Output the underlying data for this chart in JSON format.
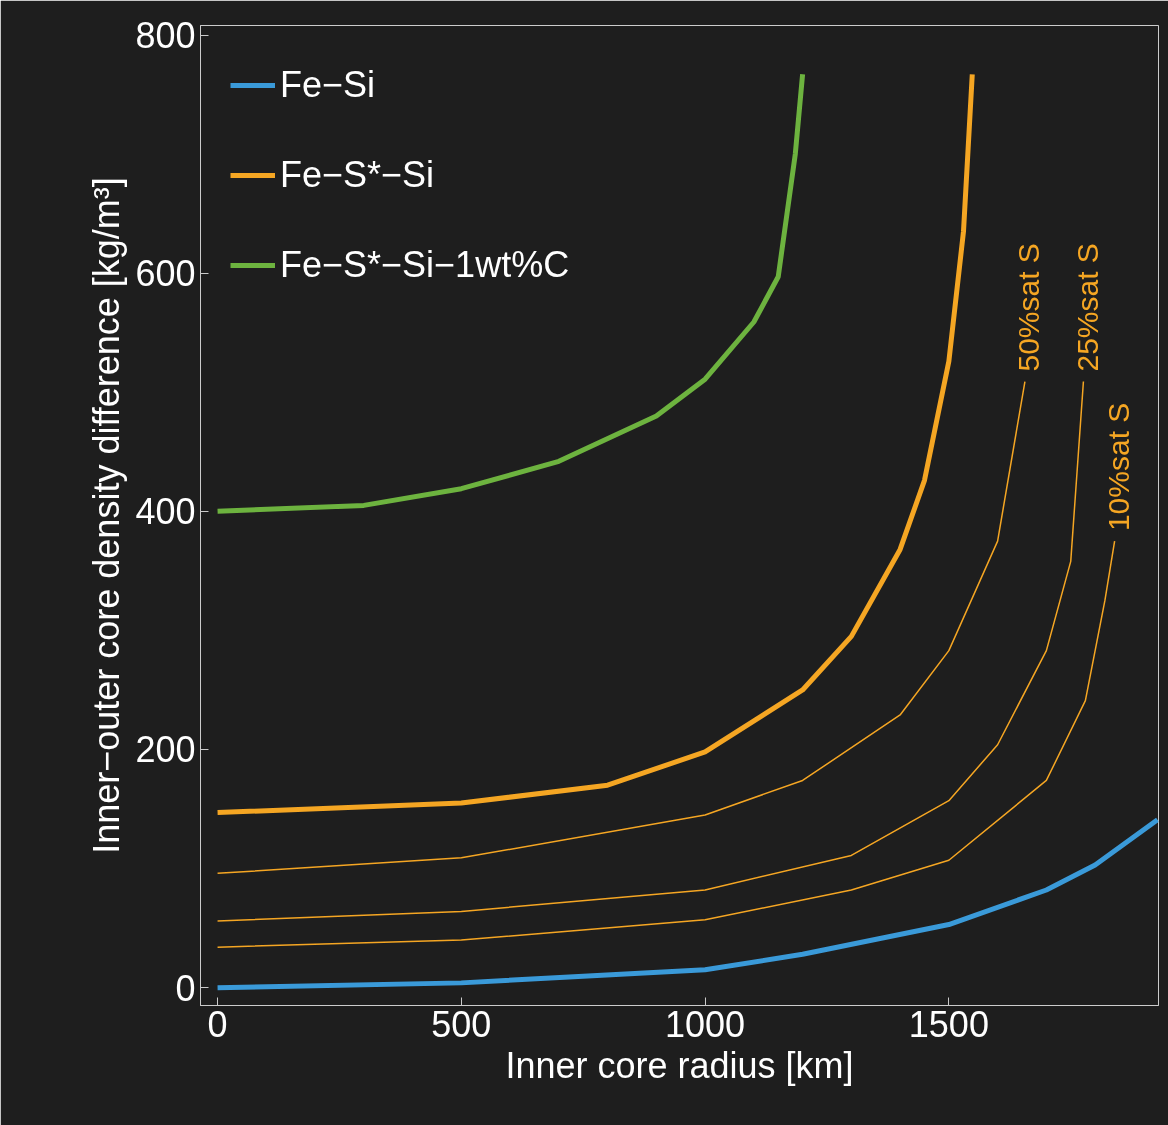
{
  "chart_data": {
    "type": "line",
    "xlabel": "Inner core radius [km]",
    "ylabel": "Inner−outer core density difference [kg/m³]",
    "xlim": [
      -35,
      1930
    ],
    "ylim": [
      -15,
      808
    ],
    "xticks": [
      0,
      500,
      1000,
      1500
    ],
    "yticks": [
      0,
      200,
      400,
      600,
      800
    ],
    "grid": false,
    "legend": "top left",
    "line_style": "solid",
    "marker": "none",
    "series": [
      {
        "name": "Fe−Si",
        "color": "#3a9ad9",
        "x": [
          0,
          500,
          1000,
          1200,
          1500,
          1700,
          1800,
          1928
        ],
        "values": [
          0,
          4,
          15,
          28,
          53,
          82,
          103,
          141
        ]
      },
      {
        "name": "Fe−S*−Si",
        "color": "#f5a623",
        "x": [
          0,
          500,
          800,
          1000,
          1200,
          1300,
          1400,
          1450,
          1500,
          1530,
          1548
        ],
        "values": [
          147,
          155,
          170,
          198,
          250,
          295,
          368,
          426,
          526,
          635,
          767
        ]
      },
      {
        "name": "Fe−S*−Si−1wt%C",
        "color": "#6db33f",
        "x": [
          0,
          300,
          500,
          700,
          900,
          1000,
          1100,
          1150,
          1185,
          1200
        ],
        "values": [
          400,
          405,
          419,
          442,
          480,
          511,
          559,
          597,
          700,
          767
        ]
      },
      {
        "color": "#f5a623",
        "x": [
          0,
          500,
          1000,
          1200,
          1400,
          1500,
          1600,
          1656
        ],
        "values": [
          96,
          109,
          145,
          174,
          229,
          283,
          375,
          509
        ]
      },
      {
        "color": "#f5a623",
        "x": [
          0,
          500,
          1000,
          1300,
          1500,
          1600,
          1700,
          1750,
          1776
        ],
        "values": [
          56,
          64,
          82,
          111,
          157,
          204,
          283,
          358,
          509
        ]
      },
      {
        "color": "#f5a623",
        "x": [
          0,
          500,
          1000,
          1300,
          1500,
          1700,
          1780,
          1820,
          1840
        ],
        "values": [
          34,
          40,
          57,
          82,
          107,
          174,
          241,
          325,
          375
        ]
      }
    ],
    "annotations": [
      {
        "text": "50%sat S",
        "x": 1656,
        "y": 509
      },
      {
        "text": "25%sat S",
        "x": 1776,
        "y": 509
      },
      {
        "text": "10%sat S",
        "x": 1840,
        "y": 375
      }
    ]
  }
}
